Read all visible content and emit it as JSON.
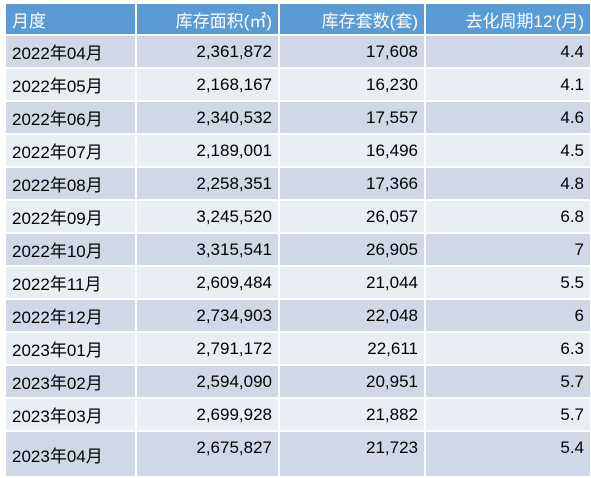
{
  "table": {
    "headers": [
      "月度",
      "库存面积(㎡)",
      "库存套数(套)",
      "去化周期12'(月)"
    ],
    "rows": [
      [
        "2022年04月",
        "2,361,872",
        "17,608",
        "4.4"
      ],
      [
        "2022年05月",
        "2,168,167",
        "16,230",
        "4.1"
      ],
      [
        "2022年06月",
        "2,340,532",
        "17,557",
        "4.6"
      ],
      [
        "2022年07月",
        "2,189,001",
        "16,496",
        "4.5"
      ],
      [
        "2022年08月",
        "2,258,351",
        "17,366",
        "4.8"
      ],
      [
        "2022年09月",
        "3,245,520",
        "26,057",
        "6.8"
      ],
      [
        "2022年10月",
        "3,315,541",
        "26,905",
        "7"
      ],
      [
        "2022年11月",
        "2,609,484",
        "21,044",
        "5.5"
      ],
      [
        "2022年12月",
        "2,734,903",
        "22,048",
        "6"
      ],
      [
        "2023年01月",
        "2,791,172",
        "22,611",
        "6.3"
      ],
      [
        "2023年02月",
        "2,594,090",
        "20,951",
        "5.7"
      ],
      [
        "2023年03月",
        "2,699,928",
        "21,882",
        "5.7"
      ],
      [
        "2023年04月",
        "2,675,827",
        "21,723",
        "5.4"
      ]
    ]
  },
  "colors": {
    "header_bg": "#5b9bd5",
    "row_odd_bg": "#d0d8e8",
    "row_even_bg": "#e9edf4"
  }
}
